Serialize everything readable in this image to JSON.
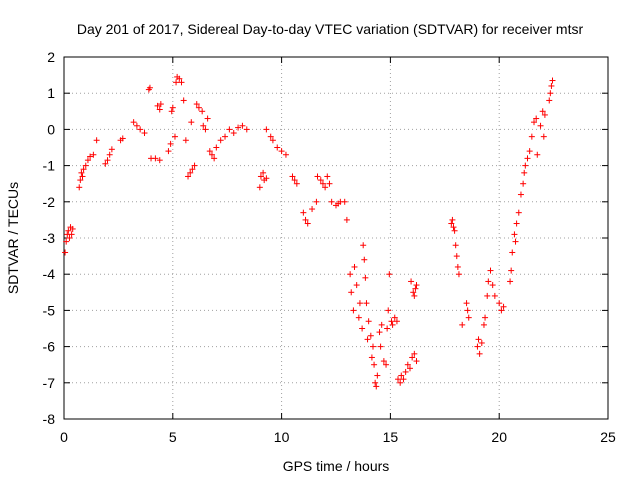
{
  "chart_data": {
    "type": "scatter",
    "title": "Day 201 of 2017, Sidereal Day-to-day VTEC variation (SDTVAR) for receiver mtsr",
    "xlabel": "GPS time / hours",
    "ylabel": "SDTVAR / TECUs",
    "xlim": [
      0,
      25
    ],
    "ylim": [
      -8,
      2
    ],
    "xticks": [
      0,
      5,
      10,
      15,
      20,
      25
    ],
    "yticks": [
      -8,
      -7,
      -6,
      -5,
      -4,
      -3,
      -2,
      -1,
      0,
      1,
      2
    ],
    "grid": true,
    "marker": "+",
    "color": "#ff0000",
    "series": [
      {
        "name": "SDTVAR",
        "points": [
          [
            0.05,
            -3.4
          ],
          [
            0.1,
            -3.1
          ],
          [
            0.15,
            -2.9
          ],
          [
            0.2,
            -2.8
          ],
          [
            0.25,
            -3.0
          ],
          [
            0.3,
            -2.7
          ],
          [
            0.35,
            -2.9
          ],
          [
            0.4,
            -2.75
          ],
          [
            0.7,
            -1.6
          ],
          [
            0.75,
            -1.4
          ],
          [
            0.8,
            -1.2
          ],
          [
            0.85,
            -1.3
          ],
          [
            0.9,
            -1.1
          ],
          [
            1.0,
            -1.0
          ],
          [
            1.1,
            -0.85
          ],
          [
            1.2,
            -0.75
          ],
          [
            1.35,
            -0.7
          ],
          [
            1.5,
            -0.3
          ],
          [
            1.9,
            -0.95
          ],
          [
            2.0,
            -0.85
          ],
          [
            2.1,
            -0.7
          ],
          [
            2.2,
            -0.55
          ],
          [
            2.6,
            -0.3
          ],
          [
            2.7,
            -0.25
          ],
          [
            3.2,
            0.2
          ],
          [
            3.35,
            0.1
          ],
          [
            3.5,
            0.0
          ],
          [
            3.7,
            -0.1
          ],
          [
            3.9,
            1.1
          ],
          [
            3.95,
            1.15
          ],
          [
            4.0,
            -0.8
          ],
          [
            4.2,
            -0.8
          ],
          [
            4.4,
            -0.85
          ],
          [
            4.3,
            0.65
          ],
          [
            4.4,
            0.55
          ],
          [
            4.45,
            0.7
          ],
          [
            4.8,
            -0.6
          ],
          [
            4.9,
            -0.4
          ],
          [
            4.95,
            0.5
          ],
          [
            5.0,
            0.6
          ],
          [
            5.1,
            -0.2
          ],
          [
            5.15,
            1.3
          ],
          [
            5.2,
            1.45
          ],
          [
            5.3,
            1.4
          ],
          [
            5.4,
            1.3
          ],
          [
            5.5,
            0.8
          ],
          [
            5.6,
            -0.3
          ],
          [
            5.7,
            -1.3
          ],
          [
            5.8,
            -1.2
          ],
          [
            5.85,
            0.2
          ],
          [
            5.9,
            -1.1
          ],
          [
            6.0,
            -1.0
          ],
          [
            6.1,
            0.7
          ],
          [
            6.2,
            0.6
          ],
          [
            6.35,
            0.5
          ],
          [
            6.4,
            0.1
          ],
          [
            6.5,
            0.0
          ],
          [
            6.6,
            0.3
          ],
          [
            6.7,
            -0.6
          ],
          [
            6.8,
            -0.7
          ],
          [
            6.9,
            -0.8
          ],
          [
            7.0,
            -0.5
          ],
          [
            7.2,
            -0.3
          ],
          [
            7.4,
            -0.2
          ],
          [
            7.6,
            0.0
          ],
          [
            7.8,
            -0.1
          ],
          [
            8.0,
            0.05
          ],
          [
            8.2,
            0.1
          ],
          [
            8.4,
            0.0
          ],
          [
            9.0,
            -1.6
          ],
          [
            9.05,
            -1.3
          ],
          [
            9.15,
            -1.2
          ],
          [
            9.2,
            -1.4
          ],
          [
            9.3,
            -1.35
          ],
          [
            9.3,
            0.0
          ],
          [
            9.5,
            -0.2
          ],
          [
            9.6,
            -0.3
          ],
          [
            9.8,
            -0.5
          ],
          [
            10.0,
            -0.6
          ],
          [
            10.2,
            -0.7
          ],
          [
            10.5,
            -1.3
          ],
          [
            10.6,
            -1.4
          ],
          [
            10.7,
            -1.5
          ],
          [
            11.0,
            -2.3
          ],
          [
            11.1,
            -2.5
          ],
          [
            11.2,
            -2.6
          ],
          [
            11.4,
            -2.2
          ],
          [
            11.6,
            -2.0
          ],
          [
            11.65,
            -1.3
          ],
          [
            11.8,
            -1.4
          ],
          [
            11.9,
            -1.5
          ],
          [
            12.0,
            -1.6
          ],
          [
            12.1,
            -1.3
          ],
          [
            12.2,
            -1.5
          ],
          [
            12.3,
            -2.0
          ],
          [
            12.5,
            -2.1
          ],
          [
            12.6,
            -2.05
          ],
          [
            12.7,
            -2.0
          ],
          [
            12.9,
            -2.0
          ],
          [
            13.0,
            -2.5
          ],
          [
            13.15,
            -4.0
          ],
          [
            13.2,
            -4.5
          ],
          [
            13.3,
            -5.0
          ],
          [
            13.35,
            -3.8
          ],
          [
            13.45,
            -4.3
          ],
          [
            13.55,
            -5.2
          ],
          [
            13.6,
            -4.8
          ],
          [
            13.7,
            -5.5
          ],
          [
            13.75,
            -3.2
          ],
          [
            13.8,
            -3.6
          ],
          [
            13.85,
            -4.1
          ],
          [
            13.9,
            -4.8
          ],
          [
            13.95,
            -5.8
          ],
          [
            14.0,
            -5.3
          ],
          [
            14.1,
            -5.7
          ],
          [
            14.15,
            -6.3
          ],
          [
            14.2,
            -6.0
          ],
          [
            14.25,
            -6.5
          ],
          [
            14.3,
            -7.0
          ],
          [
            14.35,
            -7.1
          ],
          [
            14.4,
            -6.8
          ],
          [
            14.5,
            -5.6
          ],
          [
            14.55,
            -6.0
          ],
          [
            14.6,
            -5.4
          ],
          [
            14.7,
            -6.4
          ],
          [
            14.8,
            -6.5
          ],
          [
            14.85,
            -5.5
          ],
          [
            14.9,
            -5.0
          ],
          [
            14.95,
            -4.0
          ],
          [
            15.05,
            -5.3
          ],
          [
            15.1,
            -5.4
          ],
          [
            15.2,
            -5.2
          ],
          [
            15.3,
            -5.3
          ],
          [
            15.35,
            -6.9
          ],
          [
            15.45,
            -7.0
          ],
          [
            15.5,
            -6.8
          ],
          [
            15.6,
            -6.9
          ],
          [
            15.7,
            -6.7
          ],
          [
            15.8,
            -6.5
          ],
          [
            15.9,
            -6.6
          ],
          [
            16.0,
            -6.3
          ],
          [
            16.1,
            -6.2
          ],
          [
            16.2,
            -6.4
          ],
          [
            15.95,
            -4.2
          ],
          [
            16.05,
            -4.5
          ],
          [
            16.1,
            -4.6
          ],
          [
            16.15,
            -4.4
          ],
          [
            16.2,
            -4.3
          ],
          [
            17.8,
            -2.6
          ],
          [
            17.85,
            -2.5
          ],
          [
            17.9,
            -2.7
          ],
          [
            17.95,
            -2.8
          ],
          [
            18.0,
            -3.2
          ],
          [
            18.05,
            -3.5
          ],
          [
            18.1,
            -3.8
          ],
          [
            18.15,
            -4.0
          ],
          [
            18.3,
            -5.4
          ],
          [
            18.5,
            -4.8
          ],
          [
            18.55,
            -5.0
          ],
          [
            18.6,
            -5.2
          ],
          [
            19.0,
            -6.0
          ],
          [
            19.05,
            -5.8
          ],
          [
            19.1,
            -6.2
          ],
          [
            19.2,
            -5.9
          ],
          [
            19.3,
            -5.4
          ],
          [
            19.35,
            -5.2
          ],
          [
            19.45,
            -4.6
          ],
          [
            19.5,
            -4.2
          ],
          [
            19.6,
            -3.9
          ],
          [
            19.7,
            -4.3
          ],
          [
            19.8,
            -4.6
          ],
          [
            20.0,
            -4.8
          ],
          [
            20.1,
            -5.0
          ],
          [
            20.2,
            -4.9
          ],
          [
            20.5,
            -4.2
          ],
          [
            20.55,
            -3.9
          ],
          [
            20.6,
            -3.4
          ],
          [
            20.7,
            -2.9
          ],
          [
            20.75,
            -3.1
          ],
          [
            20.8,
            -2.6
          ],
          [
            20.9,
            -2.3
          ],
          [
            21.0,
            -1.8
          ],
          [
            21.1,
            -1.5
          ],
          [
            21.15,
            -1.2
          ],
          [
            21.2,
            -1.0
          ],
          [
            21.3,
            -0.8
          ],
          [
            21.4,
            -0.6
          ],
          [
            21.5,
            -0.2
          ],
          [
            21.6,
            0.2
          ],
          [
            21.7,
            0.3
          ],
          [
            21.75,
            -0.7
          ],
          [
            21.9,
            0.1
          ],
          [
            22.0,
            0.5
          ],
          [
            22.05,
            -0.2
          ],
          [
            22.1,
            0.4
          ],
          [
            22.3,
            0.8
          ],
          [
            22.35,
            1.0
          ],
          [
            22.4,
            1.2
          ],
          [
            22.45,
            1.35
          ]
        ]
      }
    ]
  }
}
